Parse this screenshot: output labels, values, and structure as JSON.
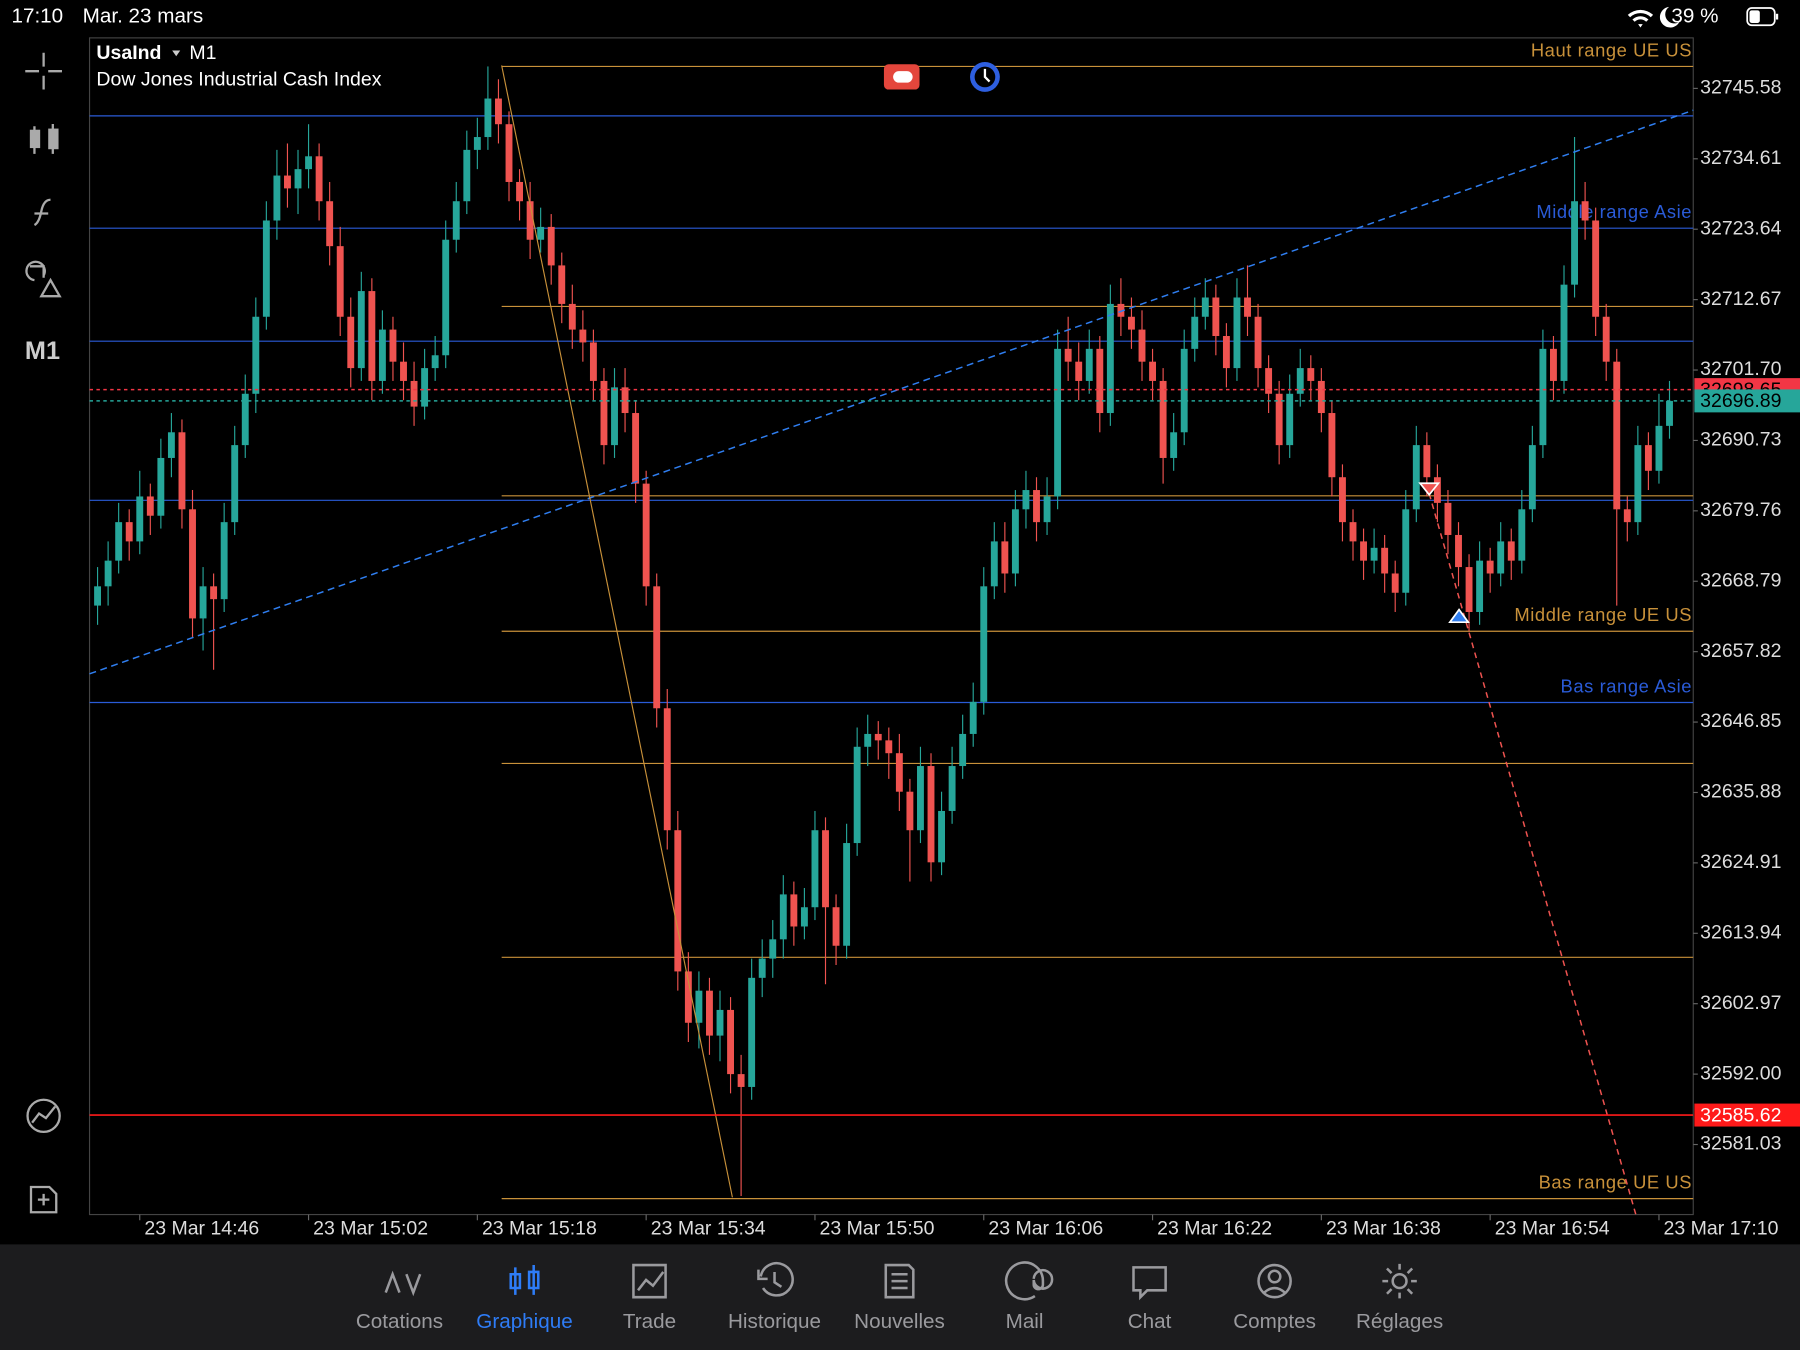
{
  "status_bar": {
    "time": "17:10",
    "date": "Mar. 23 mars",
    "battery": "39 %"
  },
  "chart_data": {
    "type": "candlestick",
    "symbol": "UsaInd",
    "timeframe": "M1",
    "description": "Dow Jones Industrial Cash Index",
    "up_color": "#26a69a",
    "down_color": "#ef5350",
    "xlim": [
      -0.76,
      151.25
    ],
    "ylim": [
      32570.12,
      32753.45
    ],
    "xticks": [
      {
        "value": 4,
        "label": "23 Mar 14:46"
      },
      {
        "value": 20,
        "label": "23 Mar 15:02"
      },
      {
        "value": 36,
        "label": "23 Mar 15:18"
      },
      {
        "value": 52,
        "label": "23 Mar 15:34"
      },
      {
        "value": 68,
        "label": "23 Mar 15:50"
      },
      {
        "value": 84,
        "label": "23 Mar 16:06"
      },
      {
        "value": 100,
        "label": "23 Mar 16:22"
      },
      {
        "value": 116,
        "label": "23 Mar 16:38"
      },
      {
        "value": 132,
        "label": "23 Mar 16:54"
      },
      {
        "value": 148,
        "label": "23 Mar 17:10"
      }
    ],
    "yticks": [
      32745.58,
      32734.61,
      32723.64,
      32712.67,
      {
        "value": 32701.7,
        "label": "32701.70"
      },
      32690.73,
      32679.76,
      32668.79,
      32657.82,
      32646.85,
      32635.88,
      32624.91,
      32613.94,
      32602.97,
      {
        "value": 32592,
        "label": "32592.00"
      },
      32581.03
    ],
    "levels": [
      {
        "label": "Haut range UE US",
        "value": 32749.0,
        "color": "#c8913a"
      },
      {
        "value": 32711.6,
        "color": "#c8913a"
      },
      {
        "value": 32682.1,
        "color": "#c8913a"
      },
      {
        "label": "Middle range UE US",
        "value": 32661.0,
        "color": "#c8913a"
      },
      {
        "value": 32640.4,
        "color": "#c8913a"
      },
      {
        "value": 32610.2,
        "color": "#c8913a"
      },
      {
        "label": "Bas range UE US",
        "value": 32572.6,
        "color": "#c8913a"
      },
      {
        "value": 32741.3,
        "color": "#2a5bd7"
      },
      {
        "label": "Middle range Asie",
        "value": 32723.8,
        "color": "#2a5bd7"
      },
      {
        "value": 32706.2,
        "color": "#2a5bd7"
      },
      {
        "value": 32681.4,
        "color": "#2a5bd7"
      },
      {
        "label": "Bas range Asie",
        "value": 32649.9,
        "color": "#2a5bd7"
      }
    ],
    "price_markers": [
      {
        "value": 32698.65,
        "color": "#f23645",
        "style": "dotted"
      },
      {
        "value": 32696.89,
        "color": "#26a69a",
        "style": "dotted"
      },
      {
        "value": 32585.62,
        "color": "#ff1a1a",
        "style": "solid"
      }
    ],
    "candles": [
      [
        32665,
        32671,
        32662,
        32668
      ],
      [
        32668,
        32675,
        32665,
        32672
      ],
      [
        32672,
        32681,
        32670,
        32678
      ],
      [
        32678,
        32680,
        32672,
        32675
      ],
      [
        32675,
        32686,
        32673,
        32682
      ],
      [
        32682,
        32684,
        32676,
        32679
      ],
      [
        32679,
        32691,
        32677,
        32688
      ],
      [
        32688,
        32695,
        32685,
        32692
      ],
      [
        32692,
        32694,
        32677,
        32680
      ],
      [
        32680,
        32683,
        32660,
        32663
      ],
      [
        32663,
        32671,
        32658,
        32668
      ],
      [
        32668,
        32670,
        32655,
        32666
      ],
      [
        32666,
        32681,
        32664,
        32678
      ],
      [
        32678,
        32693,
        32676,
        32690
      ],
      [
        32690,
        32701,
        32688,
        32698
      ],
      [
        32698,
        32713,
        32695,
        32710
      ],
      [
        32710,
        32728,
        32708,
        32725
      ],
      [
        32725,
        32736,
        32722,
        32732
      ],
      [
        32732,
        32737,
        32727,
        32730
      ],
      [
        32730,
        32736,
        32726,
        32733
      ],
      [
        32733,
        32740,
        32730,
        32735
      ],
      [
        32735,
        32737,
        32725,
        32728
      ],
      [
        32728,
        32731,
        32718,
        32721
      ],
      [
        32721,
        32724,
        32707,
        32710
      ],
      [
        32710,
        32713,
        32699,
        32702
      ],
      [
        32702,
        32717,
        32700,
        32714
      ],
      [
        32714,
        32716,
        32697,
        32700
      ],
      [
        32700,
        32711,
        32698,
        32708
      ],
      [
        32708,
        32710,
        32700,
        32703
      ],
      [
        32703,
        32706,
        32697,
        32700
      ],
      [
        32700,
        32703,
        32693,
        32696
      ],
      [
        32696,
        32705,
        32694,
        32702
      ],
      [
        32702,
        32707,
        32700,
        32704
      ],
      [
        32704,
        32725,
        32702,
        32722
      ],
      [
        32722,
        32731,
        32720,
        32728
      ],
      [
        32728,
        32739,
        32726,
        32736
      ],
      [
        32736,
        32741,
        32733,
        32738
      ],
      [
        32738,
        32749,
        32736,
        32744
      ],
      [
        32744,
        32747,
        32737,
        32740
      ],
      [
        32740,
        32742,
        32728,
        32731
      ],
      [
        32731,
        32733,
        32725,
        32728
      ],
      [
        32728,
        32731,
        32719,
        32722
      ],
      [
        32722,
        32727,
        32720,
        32724
      ],
      [
        32724,
        32726,
        32715,
        32718
      ],
      [
        32718,
        32720,
        32709,
        32712
      ],
      [
        32712,
        32715,
        32705,
        32708
      ],
      [
        32708,
        32711,
        32703,
        32706
      ],
      [
        32706,
        32708,
        32697,
        32700
      ],
      [
        32700,
        32702,
        32687,
        32690
      ],
      [
        32690,
        32702,
        32688,
        32699
      ],
      [
        32699,
        32702,
        32692,
        32695
      ],
      [
        32695,
        32697,
        32681,
        32684
      ],
      [
        32684,
        32686,
        32665,
        32668
      ],
      [
        32668,
        32670,
        32646,
        32649
      ],
      [
        32649,
        32652,
        32627,
        32630
      ],
      [
        32630,
        32633,
        32605,
        32608
      ],
      [
        32608,
        32611,
        32597,
        32600
      ],
      [
        32600,
        32608,
        32596,
        32605
      ],
      [
        32605,
        32607,
        32595,
        32598
      ],
      [
        32598,
        32605,
        32594,
        32602
      ],
      [
        32602,
        32604,
        32589,
        32592
      ],
      [
        32592,
        32595,
        32573,
        32590
      ],
      [
        32590,
        32610,
        32588,
        32607
      ],
      [
        32607,
        32613,
        32604,
        32610
      ],
      [
        32610,
        32616,
        32607,
        32613
      ],
      [
        32613,
        32623,
        32610,
        32620
      ],
      [
        32620,
        32622,
        32612,
        32615
      ],
      [
        32615,
        32621,
        32613,
        32618
      ],
      [
        32618,
        32633,
        32616,
        32630
      ],
      [
        32630,
        32632,
        32606,
        32618
      ],
      [
        32618,
        32620,
        32609,
        32612
      ],
      [
        32612,
        32631,
        32610,
        32628
      ],
      [
        32628,
        32646,
        32626,
        32643
      ],
      [
        32643,
        32648,
        32640,
        32645
      ],
      [
        32645,
        32647,
        32641,
        32644
      ],
      [
        32644,
        32646,
        32638,
        32642
      ],
      [
        32642,
        32645,
        32633,
        32636
      ],
      [
        32636,
        32638,
        32622,
        32630
      ],
      [
        32630,
        32643,
        32628,
        32640
      ],
      [
        32640,
        32642,
        32622,
        32625
      ],
      [
        32625,
        32636,
        32623,
        32633
      ],
      [
        32633,
        32643,
        32631,
        32640
      ],
      [
        32640,
        32648,
        32638,
        32645
      ],
      [
        32645,
        32653,
        32643,
        32650
      ],
      [
        32650,
        32671,
        32648,
        32668
      ],
      [
        32668,
        32678,
        32666,
        32675
      ],
      [
        32675,
        32678,
        32667,
        32670
      ],
      [
        32670,
        32683,
        32668,
        32680
      ],
      [
        32680,
        32686,
        32677,
        32683
      ],
      [
        32683,
        32685,
        32675,
        32678
      ],
      [
        32678,
        32685,
        32676,
        32682
      ],
      [
        32682,
        32708,
        32680,
        32705
      ],
      [
        32705,
        32710,
        32700,
        32703
      ],
      [
        32703,
        32706,
        32697,
        32700
      ],
      [
        32700,
        32708,
        32698,
        32705
      ],
      [
        32705,
        32707,
        32692,
        32695
      ],
      [
        32695,
        32715,
        32693,
        32712
      ],
      [
        32712,
        32716,
        32707,
        32710
      ],
      [
        32710,
        32713,
        32705,
        32708
      ],
      [
        32708,
        32711,
        32700,
        32703
      ],
      [
        32703,
        32705,
        32697,
        32700
      ],
      [
        32700,
        32702,
        32684,
        32688
      ],
      [
        32688,
        32695,
        32686,
        32692
      ],
      [
        32692,
        32708,
        32690,
        32705
      ],
      [
        32705,
        32713,
        32703,
        32710
      ],
      [
        32710,
        32716,
        32708,
        32713
      ],
      [
        32713,
        32715,
        32704,
        32707
      ],
      [
        32707,
        32709,
        32699,
        32702
      ],
      [
        32702,
        32716,
        32700,
        32713
      ],
      [
        32713,
        32718,
        32707,
        32710
      ],
      [
        32710,
        32712,
        32699,
        32702
      ],
      [
        32702,
        32704,
        32695,
        32698
      ],
      [
        32698,
        32700,
        32687,
        32690
      ],
      [
        32690,
        32701,
        32688,
        32698
      ],
      [
        32698,
        32705,
        32696,
        32702
      ],
      [
        32702,
        32704,
        32697,
        32700
      ],
      [
        32700,
        32702,
        32692,
        32695
      ],
      [
        32695,
        32697,
        32682,
        32685
      ],
      [
        32685,
        32687,
        32675,
        32678
      ],
      [
        32678,
        32680,
        32672,
        32675
      ],
      [
        32675,
        32677,
        32669,
        32672
      ],
      [
        32672,
        32677,
        32670,
        32674
      ],
      [
        32674,
        32676,
        32667,
        32670
      ],
      [
        32670,
        32672,
        32664,
        32667
      ],
      [
        32667,
        32683,
        32665,
        32680
      ],
      [
        32680,
        32693,
        32678,
        32690
      ],
      [
        32690,
        32692,
        32682,
        32685
      ],
      [
        32685,
        32687,
        32678,
        32681
      ],
      [
        32681,
        32683,
        32673,
        32676
      ],
      [
        32676,
        32678,
        32668,
        32671
      ],
      [
        32671,
        32673,
        32661,
        32664
      ],
      [
        32664,
        32675,
        32662,
        32672
      ],
      [
        32672,
        32674,
        32667,
        32670
      ],
      [
        32670,
        32678,
        32668,
        32675
      ],
      [
        32675,
        32677,
        32669,
        32672
      ],
      [
        32672,
        32683,
        32670,
        32680
      ],
      [
        32680,
        32693,
        32678,
        32690
      ],
      [
        32690,
        32708,
        32688,
        32705
      ],
      [
        32705,
        32707,
        32697,
        32700
      ],
      [
        32700,
        32718,
        32698,
        32715
      ],
      [
        32715,
        32738,
        32713,
        32728
      ],
      [
        32728,
        32731,
        32722,
        32725
      ],
      [
        32725,
        32727,
        32707,
        32710
      ],
      [
        32710,
        32712,
        32700,
        32703
      ],
      [
        32703,
        32705,
        32665,
        32680
      ],
      [
        32680,
        32682,
        32675,
        32678
      ],
      [
        32678,
        32693,
        32676,
        32690
      ],
      [
        32690,
        32692,
        32683,
        32686
      ],
      [
        32686,
        32698,
        32684,
        32693
      ],
      [
        32693,
        32700,
        32691,
        32696.89
      ]
    ]
  },
  "tab_bar": {
    "items": [
      "Cotations",
      "Graphique",
      "Trade",
      "Historique",
      "Nouvelles",
      "Mail",
      "Chat",
      "Comptes",
      "Réglages"
    ],
    "active": 1
  }
}
